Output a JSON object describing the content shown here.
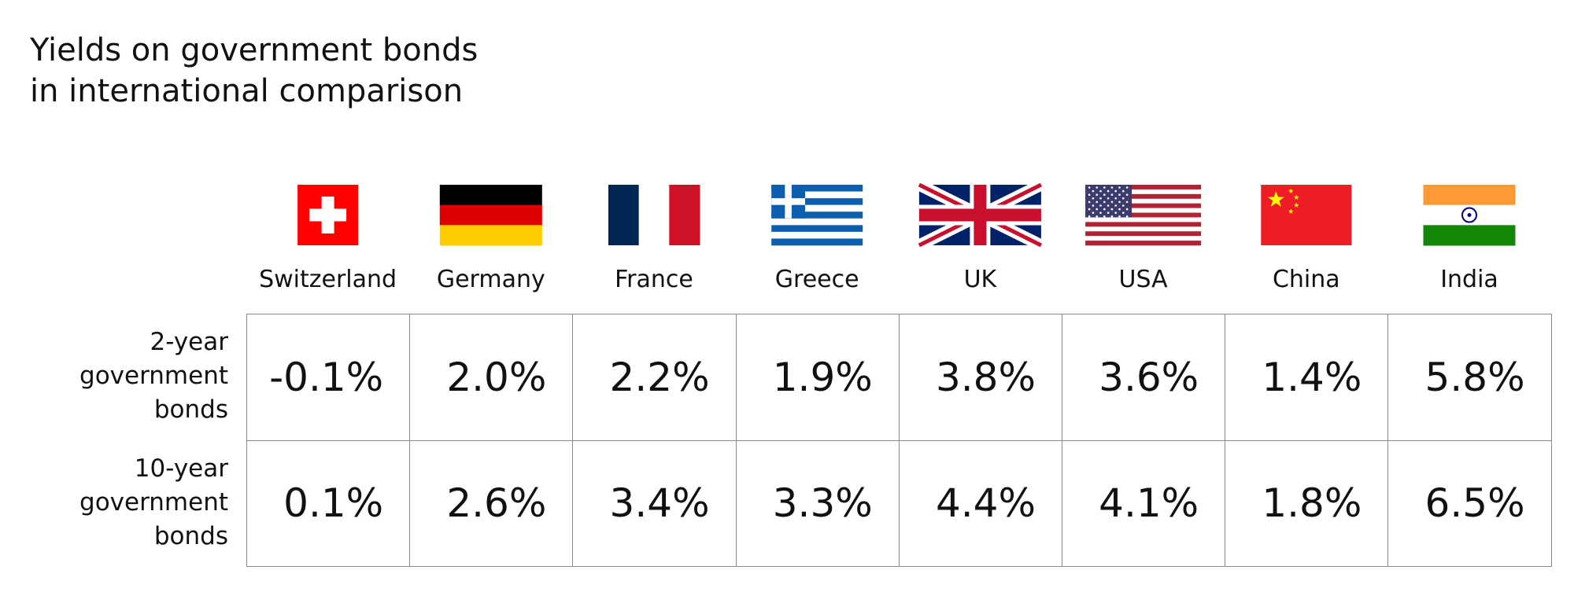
{
  "title": "Yields on government bonds in international comparison",
  "table": {
    "columns": [
      "Switzerland",
      "Germany",
      "France",
      "Greece",
      "UK",
      "USA",
      "China",
      "India"
    ],
    "rows": [
      {
        "label": "2-year government bonds",
        "values": [
          "-0.1%",
          "2.0%",
          "2.2%",
          "1.9%",
          "3.8%",
          "3.6%",
          "1.4%",
          "5.8%"
        ]
      },
      {
        "label": "10-year government bonds",
        "values": [
          "0.1%",
          "2.6%",
          "3.4%",
          "3.3%",
          "4.4%",
          "4.1%",
          "1.8%",
          "6.5%"
        ]
      }
    ]
  }
}
